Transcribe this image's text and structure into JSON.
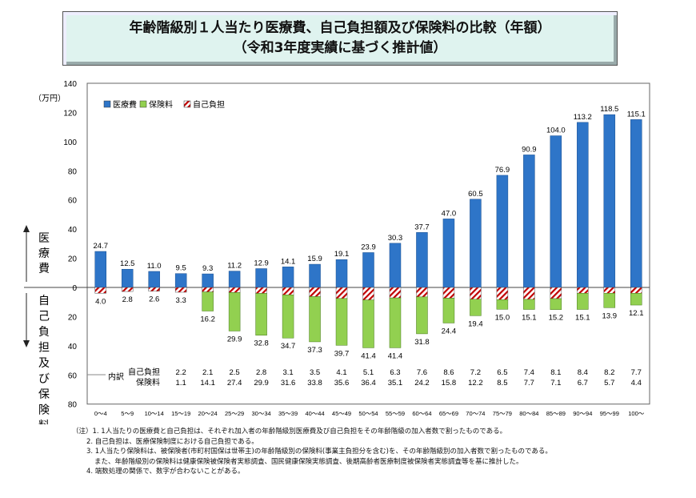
{
  "title": {
    "line1": "年齢階級別１人当たり医療費、自己負担額及び保険料の比較（年額）",
    "line2": "（令和3年度実績に基づく推計値）"
  },
  "chart_data": {
    "type": "bar",
    "unit": "（万円）",
    "categories": [
      "0～4",
      "5～9",
      "10～14",
      "15～19",
      "20～24",
      "25～29",
      "30～34",
      "35～39",
      "40～44",
      "45～49",
      "50～54",
      "55～59",
      "60～64",
      "65～69",
      "70～74",
      "75～79",
      "80～84",
      "85～89",
      "90～94",
      "95～99",
      "100～"
    ],
    "series": [
      {
        "name": "医療費",
        "color": "#2e75c8",
        "values": [
          24.7,
          12.5,
          11.0,
          9.5,
          9.3,
          11.2,
          12.9,
          14.1,
          15.9,
          19.1,
          23.9,
          30.3,
          37.7,
          47.0,
          60.5,
          76.9,
          90.9,
          104.0,
          113.2,
          118.5,
          115.1
        ]
      },
      {
        "name": "保険料",
        "color": "#92d050",
        "values": [
          1.1,
          14.1,
          27.4,
          29.9,
          31.6,
          33.8,
          35.6,
          36.4,
          35.1,
          24.2,
          15.8,
          12.2,
          8.5,
          7.7,
          7.1,
          6.7,
          5.7,
          4.4,
          null,
          null,
          null
        ]
      },
      {
        "name": "自己負担",
        "color": "#c00000",
        "pattern": "hatched",
        "values": [
          2.2,
          2.1,
          2.5,
          2.8,
          3.1,
          3.5,
          4.1,
          5.1,
          6.3,
          7.6,
          8.6,
          7.2,
          6.5,
          7.4,
          8.1,
          8.4,
          8.2,
          7.7,
          null,
          null,
          null
        ]
      }
    ],
    "lower_totals": [
      4.0,
      2.8,
      2.6,
      3.3,
      16.2,
      29.9,
      32.8,
      34.7,
      37.3,
      39.7,
      41.4,
      41.4,
      31.8,
      24.4,
      19.4,
      15.0,
      15.1,
      15.2,
      15.1,
      13.9,
      12.1
    ],
    "breakdown": {
      "label": "内訳",
      "rows": [
        {
          "label": "自己負担",
          "values": [
            2.2,
            2.1,
            2.5,
            2.8,
            3.1,
            3.5,
            4.1,
            5.1,
            6.3,
            7.6,
            8.6,
            7.2,
            6.5,
            7.4,
            8.1,
            8.4,
            8.2,
            7.7
          ]
        },
        {
          "label": "保険料",
          "values": [
            1.1,
            14.1,
            27.4,
            29.9,
            31.6,
            33.8,
            35.6,
            36.4,
            35.1,
            24.2,
            15.8,
            12.2,
            8.5,
            7.7,
            7.1,
            6.7,
            5.7,
            4.4
          ]
        }
      ]
    },
    "y_upper_ticks": [
      140,
      120,
      100,
      80,
      60,
      40,
      20,
      0
    ],
    "y_lower_ticks": [
      20,
      40,
      60,
      80
    ],
    "ylim": [
      -80,
      140
    ],
    "upper_axis_label": "医療費",
    "lower_axis_label": "自己負担及び保険料",
    "legend": "top-left",
    "grid": false
  },
  "notes": [
    "（注）1. 1人当たりの医療費と自己負担は、それぞれ加入者の年齢階級別医療費及び自己負担をその年齢階級の加入者数で割ったものである。",
    "2. 自己負担は、医療保険制度における自己負担である。",
    "3. 1人当たり保険料は、被保険者(市町村国保は世帯主)の年齢階級別の保険料(事業主負担分を含む)を、その年齢階級別の加入者数で割ったものである。",
    "また、年齢階級別の保険料は健康保険被保険者実態調査、国民健康保険実態調査、後期高齢者医療制度被保険者実態調査等を基に推計した。",
    "4. 端数処理の関係で、数字が合わないことがある。"
  ]
}
